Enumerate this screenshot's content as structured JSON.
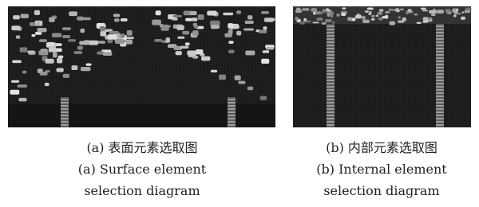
{
  "figures": [
    {
      "caption_zh": "(a) 表面元素选取图",
      "caption_en": [
        "(a) Surface element",
        "selection diagram"
      ]
    },
    {
      "caption_zh": "(b) 内部元素选取图",
      "caption_en": [
        "(b) Internal element",
        "selection diagram"
      ]
    }
  ]
}
